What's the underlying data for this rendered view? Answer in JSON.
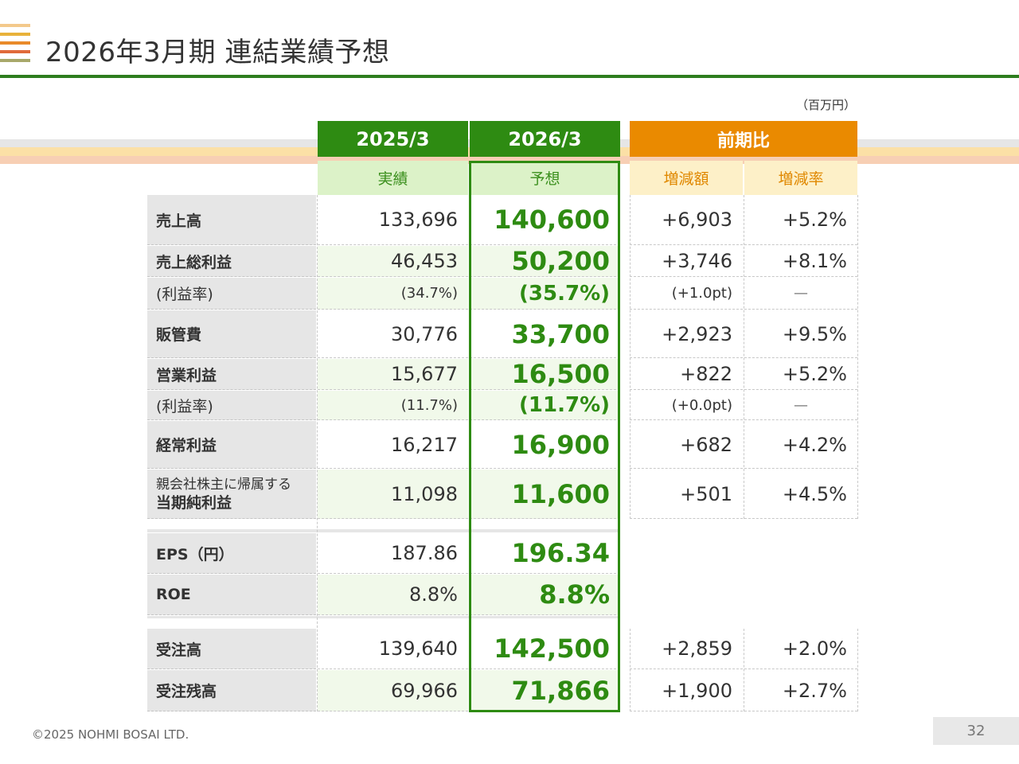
{
  "header": {
    "title": "2026年3月期 連結業績予想",
    "unit": "（百万円）",
    "logo_colors": [
      "#f3c98b",
      "#e8b23a",
      "#e98a2a",
      "#e06a3a",
      "#a8a86a"
    ]
  },
  "columns": {
    "prev": {
      "year": "2025/3",
      "type": "実績"
    },
    "forecast": {
      "year": "2026/3",
      "type": "予想"
    },
    "comparison": {
      "title": "前期比",
      "diff": "増減額",
      "rate": "増減率"
    }
  },
  "rows": [
    {
      "label": "売上高",
      "prev": "133,696",
      "forecast": "140,600",
      "diff": "+6,903",
      "rate": "+5.2%"
    },
    {
      "label": "売上総利益",
      "prev": "46,453",
      "forecast": "50,200",
      "diff": "+3,746",
      "rate": "+8.1%"
    },
    {
      "label": "(利益率)",
      "prev": "(34.7%)",
      "forecast": "(35.7%)",
      "diff": "(+1.0pt)",
      "rate": "—"
    },
    {
      "label": "販管費",
      "prev": "30,776",
      "forecast": "33,700",
      "diff": "+2,923",
      "rate": "+9.5%"
    },
    {
      "label": "営業利益",
      "prev": "15,677",
      "forecast": "16,500",
      "diff": "+822",
      "rate": "+5.2%"
    },
    {
      "label": "(利益率)",
      "prev": "(11.7%)",
      "forecast": "(11.7%)",
      "diff": "(+0.0pt)",
      "rate": "—"
    },
    {
      "label": "経常利益",
      "prev": "16,217",
      "forecast": "16,900",
      "diff": "+682",
      "rate": "+4.2%"
    },
    {
      "label_line1": "親会社株主に帰属する",
      "label_line2": "当期純利益",
      "prev": "11,098",
      "forecast": "11,600",
      "diff": "+501",
      "rate": "+4.5%"
    },
    {
      "label": "EPS（円）",
      "prev": "187.86",
      "forecast": "196.34"
    },
    {
      "label": "ROE",
      "prev": "8.8%",
      "forecast": "8.8%"
    },
    {
      "label": "受注高",
      "prev": "139,640",
      "forecast": "142,500",
      "diff": "+2,859",
      "rate": "+2.0%"
    },
    {
      "label": "受注残高",
      "prev": "69,966",
      "forecast": "71,866",
      "diff": "+1,900",
      "rate": "+2.7%"
    }
  ],
  "footer": {
    "copyright": "©2025 NOHMI BOSAI LTD.",
    "page": "32"
  },
  "colors": {
    "green": "#2e8b12",
    "orange": "#ea8a00",
    "light_green": "#dcf2c8",
    "light_orange": "#fdf0c8"
  }
}
